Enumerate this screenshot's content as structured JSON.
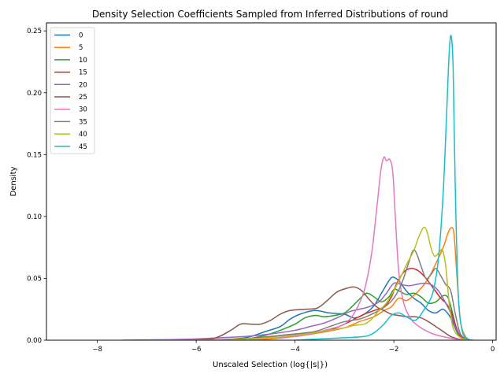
{
  "chart_data": {
    "type": "line",
    "title": "Density Selection Coefficients Sampled from Inferred Distributions of round",
    "xlabel": "Unscaled Selection (log{|s|})",
    "ylabel": "Density",
    "xlim": [
      -9.03,
      0.07
    ],
    "ylim": [
      0.0,
      0.2565
    ],
    "xticks": [
      -8,
      -6,
      -4,
      -2,
      0
    ],
    "xtick_labels": [
      "−8",
      "−6",
      "−4",
      "−2",
      "0"
    ],
    "yticks": [
      0.0,
      0.05,
      0.1,
      0.15,
      0.2,
      0.25
    ],
    "ytick_labels": [
      "0.00",
      "0.05",
      "0.10",
      "0.15",
      "0.20",
      "0.25"
    ],
    "grid": false,
    "legend_position": "upper-left",
    "series": [
      {
        "name": "0",
        "color": "#1f77b4",
        "points": [
          [
            -6.0,
            0
          ],
          [
            -5.5,
            0.0005
          ],
          [
            -5.0,
            0.002
          ],
          [
            -4.6,
            0.007
          ],
          [
            -4.3,
            0.011
          ],
          [
            -4.1,
            0.017
          ],
          [
            -3.9,
            0.021
          ],
          [
            -3.6,
            0.024
          ],
          [
            -3.3,
            0.022
          ],
          [
            -3.0,
            0.021
          ],
          [
            -2.8,
            0.018
          ],
          [
            -2.6,
            0.021
          ],
          [
            -2.4,
            0.028
          ],
          [
            -2.25,
            0.038
          ],
          [
            -2.1,
            0.048
          ],
          [
            -2.02,
            0.051
          ],
          [
            -1.9,
            0.048
          ],
          [
            -1.75,
            0.04
          ],
          [
            -1.6,
            0.034
          ],
          [
            -1.45,
            0.03
          ],
          [
            -1.3,
            0.024
          ],
          [
            -1.15,
            0.022
          ],
          [
            -1.0,
            0.025
          ],
          [
            -0.85,
            0.018
          ],
          [
            -0.7,
            0.005
          ],
          [
            -0.55,
            0.0005
          ],
          [
            -0.4,
            0
          ]
        ]
      },
      {
        "name": "5",
        "color": "#ff7f0e",
        "points": [
          [
            -5.0,
            0
          ],
          [
            -4.5,
            0.001
          ],
          [
            -4.0,
            0.003
          ],
          [
            -3.5,
            0.006
          ],
          [
            -3.0,
            0.01
          ],
          [
            -2.7,
            0.015
          ],
          [
            -2.4,
            0.019
          ],
          [
            -2.2,
            0.024
          ],
          [
            -2.05,
            0.027
          ],
          [
            -1.9,
            0.034
          ],
          [
            -1.75,
            0.032
          ],
          [
            -1.6,
            0.036
          ],
          [
            -1.45,
            0.042
          ],
          [
            -1.3,
            0.05
          ],
          [
            -1.15,
            0.062
          ],
          [
            -1.0,
            0.075
          ],
          [
            -0.9,
            0.087
          ],
          [
            -0.83,
            0.091
          ],
          [
            -0.78,
            0.085
          ],
          [
            -0.72,
            0.05
          ],
          [
            -0.65,
            0.015
          ],
          [
            -0.55,
            0.003
          ],
          [
            -0.45,
            0
          ]
        ]
      },
      {
        "name": "10",
        "color": "#2ca02c",
        "points": [
          [
            -5.6,
            0
          ],
          [
            -5.0,
            0.001
          ],
          [
            -4.6,
            0.004
          ],
          [
            -4.3,
            0.008
          ],
          [
            -4.0,
            0.013
          ],
          [
            -3.8,
            0.018
          ],
          [
            -3.6,
            0.02
          ],
          [
            -3.4,
            0.019
          ],
          [
            -3.2,
            0.02
          ],
          [
            -3.0,
            0.022
          ],
          [
            -2.85,
            0.027
          ],
          [
            -2.7,
            0.033
          ],
          [
            -2.55,
            0.038
          ],
          [
            -2.4,
            0.035
          ],
          [
            -2.25,
            0.031
          ],
          [
            -2.1,
            0.035
          ],
          [
            -2.0,
            0.041
          ],
          [
            -1.9,
            0.04
          ],
          [
            -1.75,
            0.037
          ],
          [
            -1.6,
            0.038
          ],
          [
            -1.45,
            0.035
          ],
          [
            -1.3,
            0.03
          ],
          [
            -1.15,
            0.031
          ],
          [
            -1.0,
            0.036
          ],
          [
            -0.9,
            0.034
          ],
          [
            -0.8,
            0.02
          ],
          [
            -0.7,
            0.005
          ],
          [
            -0.55,
            0.0005
          ],
          [
            -0.45,
            0
          ]
        ]
      },
      {
        "name": "15",
        "color": "#d62728",
        "points": [
          [
            -5.6,
            0
          ],
          [
            -5.0,
            0.001
          ],
          [
            -4.5,
            0.003
          ],
          [
            -4.0,
            0.005
          ],
          [
            -3.6,
            0.006
          ],
          [
            -3.3,
            0.008
          ],
          [
            -3.0,
            0.013
          ],
          [
            -2.8,
            0.017
          ],
          [
            -2.6,
            0.021
          ],
          [
            -2.4,
            0.024
          ],
          [
            -2.2,
            0.027
          ],
          [
            -2.05,
            0.035
          ],
          [
            -1.95,
            0.045
          ],
          [
            -1.8,
            0.055
          ],
          [
            -1.65,
            0.058
          ],
          [
            -1.5,
            0.056
          ],
          [
            -1.35,
            0.05
          ],
          [
            -1.2,
            0.042
          ],
          [
            -1.05,
            0.034
          ],
          [
            -0.95,
            0.03
          ],
          [
            -0.85,
            0.024
          ],
          [
            -0.75,
            0.012
          ],
          [
            -0.65,
            0.003
          ],
          [
            -0.5,
            0
          ]
        ]
      },
      {
        "name": "20",
        "color": "#9467bd",
        "points": [
          [
            -7.5,
            0
          ],
          [
            -6.5,
            0.0005
          ],
          [
            -6.0,
            0.001
          ],
          [
            -5.5,
            0.002
          ],
          [
            -5.0,
            0.003
          ],
          [
            -4.5,
            0.005
          ],
          [
            -4.0,
            0.008
          ],
          [
            -3.7,
            0.011
          ],
          [
            -3.4,
            0.014
          ],
          [
            -3.1,
            0.019
          ],
          [
            -2.9,
            0.023
          ],
          [
            -2.7,
            0.025
          ],
          [
            -2.5,
            0.027
          ],
          [
            -2.3,
            0.031
          ],
          [
            -2.15,
            0.038
          ],
          [
            -2.0,
            0.046
          ],
          [
            -1.85,
            0.045
          ],
          [
            -1.7,
            0.044
          ],
          [
            -1.55,
            0.045
          ],
          [
            -1.4,
            0.046
          ],
          [
            -1.25,
            0.045
          ],
          [
            -1.1,
            0.04
          ],
          [
            -0.95,
            0.03
          ],
          [
            -0.85,
            0.022
          ],
          [
            -0.75,
            0.01
          ],
          [
            -0.6,
            0.002
          ],
          [
            -0.45,
            0
          ]
        ]
      },
      {
        "name": "25",
        "color": "#8c564b",
        "points": [
          [
            -7.0,
            0
          ],
          [
            -6.0,
            0.0005
          ],
          [
            -5.6,
            0.002
          ],
          [
            -5.3,
            0.008
          ],
          [
            -5.1,
            0.013
          ],
          [
            -4.9,
            0.013
          ],
          [
            -4.7,
            0.013
          ],
          [
            -4.5,
            0.016
          ],
          [
            -4.3,
            0.021
          ],
          [
            -4.1,
            0.024
          ],
          [
            -3.8,
            0.025
          ],
          [
            -3.55,
            0.026
          ],
          [
            -3.35,
            0.032
          ],
          [
            -3.15,
            0.039
          ],
          [
            -2.95,
            0.042
          ],
          [
            -2.8,
            0.043
          ],
          [
            -2.65,
            0.04
          ],
          [
            -2.5,
            0.033
          ],
          [
            -2.35,
            0.027
          ],
          [
            -2.2,
            0.024
          ],
          [
            -2.05,
            0.021
          ],
          [
            -1.9,
            0.02
          ],
          [
            -1.75,
            0.019
          ],
          [
            -1.6,
            0.019
          ],
          [
            -1.45,
            0.018
          ],
          [
            -1.3,
            0.015
          ],
          [
            -1.15,
            0.011
          ],
          [
            -1.0,
            0.007
          ],
          [
            -0.85,
            0.003
          ],
          [
            -0.7,
            0.001
          ],
          [
            -0.55,
            0
          ]
        ]
      },
      {
        "name": "30",
        "color": "#e377c2",
        "points": [
          [
            -7.0,
            0
          ],
          [
            -5.5,
            0.0005
          ],
          [
            -5.0,
            0.001
          ],
          [
            -4.5,
            0.002
          ],
          [
            -4.0,
            0.003
          ],
          [
            -3.6,
            0.006
          ],
          [
            -3.3,
            0.009
          ],
          [
            -3.0,
            0.013
          ],
          [
            -2.8,
            0.022
          ],
          [
            -2.6,
            0.04
          ],
          [
            -2.45,
            0.07
          ],
          [
            -2.35,
            0.105
          ],
          [
            -2.26,
            0.138
          ],
          [
            -2.2,
            0.148
          ],
          [
            -2.15,
            0.145
          ],
          [
            -2.08,
            0.146
          ],
          [
            -2.02,
            0.135
          ],
          [
            -1.97,
            0.1
          ],
          [
            -1.9,
            0.055
          ],
          [
            -1.8,
            0.03
          ],
          [
            -1.65,
            0.017
          ],
          [
            -1.45,
            0.01
          ],
          [
            -1.2,
            0.005
          ],
          [
            -0.9,
            0.002
          ],
          [
            -0.6,
            0
          ]
        ]
      },
      {
        "name": "35",
        "color": "#7f7f7f",
        "points": [
          [
            -5.6,
            0
          ],
          [
            -5.0,
            0.001
          ],
          [
            -4.5,
            0.003
          ],
          [
            -4.0,
            0.005
          ],
          [
            -3.6,
            0.007
          ],
          [
            -3.3,
            0.011
          ],
          [
            -3.0,
            0.015
          ],
          [
            -2.7,
            0.017
          ],
          [
            -2.5,
            0.02
          ],
          [
            -2.3,
            0.024
          ],
          [
            -2.15,
            0.028
          ],
          [
            -2.0,
            0.034
          ],
          [
            -1.85,
            0.045
          ],
          [
            -1.72,
            0.06
          ],
          [
            -1.62,
            0.072
          ],
          [
            -1.55,
            0.071
          ],
          [
            -1.45,
            0.06
          ],
          [
            -1.35,
            0.05
          ],
          [
            -1.25,
            0.053
          ],
          [
            -1.15,
            0.058
          ],
          [
            -1.05,
            0.052
          ],
          [
            -0.95,
            0.045
          ],
          [
            -0.85,
            0.04
          ],
          [
            -0.75,
            0.02
          ],
          [
            -0.65,
            0.005
          ],
          [
            -0.5,
            0
          ]
        ]
      },
      {
        "name": "40",
        "color": "#bcbd22",
        "points": [
          [
            -5.6,
            0
          ],
          [
            -5.0,
            0.001
          ],
          [
            -4.5,
            0.002
          ],
          [
            -4.0,
            0.004
          ],
          [
            -3.6,
            0.006
          ],
          [
            -3.3,
            0.008
          ],
          [
            -3.0,
            0.01
          ],
          [
            -2.8,
            0.012
          ],
          [
            -2.6,
            0.013
          ],
          [
            -2.45,
            0.017
          ],
          [
            -2.3,
            0.024
          ],
          [
            -2.15,
            0.03
          ],
          [
            -2.0,
            0.04
          ],
          [
            -1.85,
            0.052
          ],
          [
            -1.72,
            0.063
          ],
          [
            -1.6,
            0.072
          ],
          [
            -1.5,
            0.083
          ],
          [
            -1.4,
            0.091
          ],
          [
            -1.33,
            0.088
          ],
          [
            -1.25,
            0.075
          ],
          [
            -1.18,
            0.068
          ],
          [
            -1.1,
            0.07
          ],
          [
            -1.02,
            0.073
          ],
          [
            -0.95,
            0.06
          ],
          [
            -0.88,
            0.03
          ],
          [
            -0.8,
            0.01
          ],
          [
            -0.65,
            0.002
          ],
          [
            -0.5,
            0
          ]
        ]
      },
      {
        "name": "45",
        "color": "#17becf",
        "points": [
          [
            -4.0,
            0
          ],
          [
            -3.5,
            0.001
          ],
          [
            -3.0,
            0.002
          ],
          [
            -2.6,
            0.003
          ],
          [
            -2.4,
            0.006
          ],
          [
            -2.2,
            0.013
          ],
          [
            -2.05,
            0.02
          ],
          [
            -1.9,
            0.022
          ],
          [
            -1.75,
            0.019
          ],
          [
            -1.6,
            0.016
          ],
          [
            -1.5,
            0.018
          ],
          [
            -1.4,
            0.024
          ],
          [
            -1.3,
            0.03
          ],
          [
            -1.2,
            0.04
          ],
          [
            -1.1,
            0.065
          ],
          [
            -1.0,
            0.12
          ],
          [
            -0.93,
            0.185
          ],
          [
            -0.88,
            0.232
          ],
          [
            -0.84,
            0.246
          ],
          [
            -0.8,
            0.22
          ],
          [
            -0.76,
            0.13
          ],
          [
            -0.7,
            0.04
          ],
          [
            -0.62,
            0.008
          ],
          [
            -0.5,
            0.001
          ],
          [
            -0.4,
            0
          ]
        ]
      }
    ]
  }
}
